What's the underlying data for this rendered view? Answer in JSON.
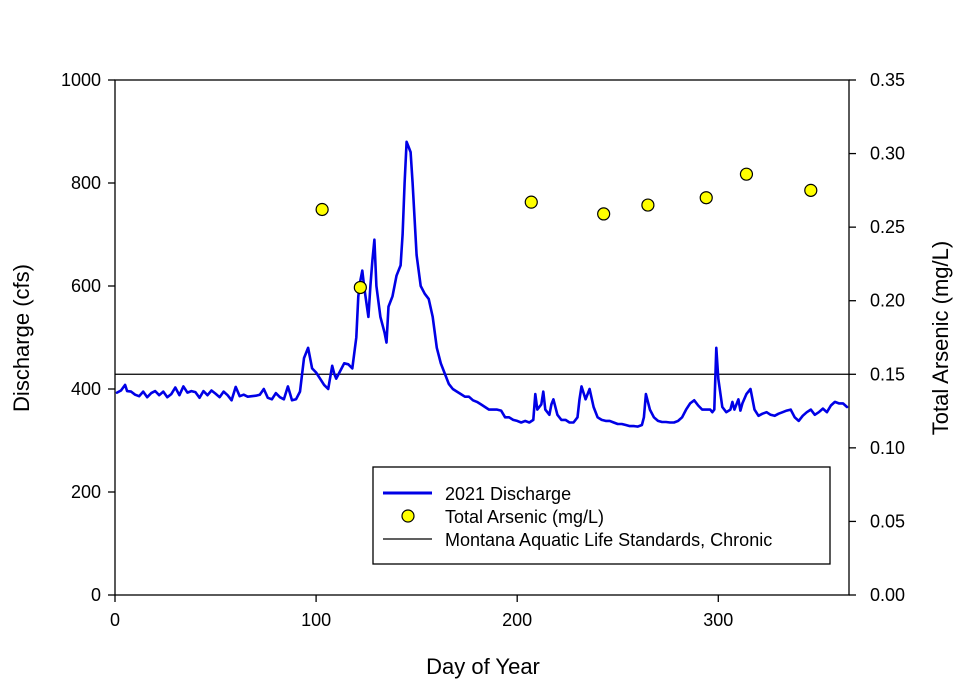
{
  "chart_data": {
    "type": "line",
    "xlabel": "Day of Year",
    "ylabel": "Discharge (cfs)",
    "y2label": "Total Arsenic (mg/L)",
    "xlim": [
      0,
      365
    ],
    "ylim": [
      0,
      1000
    ],
    "y2lim": [
      0,
      0.35
    ],
    "xticks": [
      0,
      100,
      200,
      300
    ],
    "yticks": [
      0,
      200,
      400,
      600,
      800,
      1000
    ],
    "y2ticks": [
      0.0,
      0.05,
      0.1,
      0.15,
      0.2,
      0.25,
      0.3,
      0.35
    ],
    "grid": false,
    "legend_position": "bottom-right",
    "colors": {
      "discharge": "#0000e6",
      "arsenic_fill": "#ffff00",
      "arsenic_edge": "#000000",
      "standard": "#000000"
    },
    "series": [
      {
        "name": "2021 Discharge",
        "axis": "left",
        "x": [
          1,
          3,
          5,
          6,
          8,
          10,
          12,
          14,
          16,
          18,
          20,
          22,
          24,
          26,
          28,
          30,
          32,
          34,
          36,
          38,
          40,
          42,
          44,
          46,
          48,
          50,
          52,
          54,
          56,
          58,
          60,
          62,
          64,
          66,
          68,
          70,
          72,
          74,
          76,
          78,
          80,
          82,
          84,
          86,
          88,
          90,
          92,
          94,
          96,
          98,
          100,
          102,
          104,
          106,
          108,
          109,
          110,
          112,
          114,
          116,
          118,
          120,
          121,
          122,
          123,
          124,
          126,
          127,
          128,
          129,
          130,
          132,
          134,
          135,
          136,
          138,
          140,
          142,
          143,
          144,
          145,
          146,
          147,
          148,
          150,
          152,
          154,
          156,
          158,
          160,
          162,
          164,
          166,
          168,
          170,
          172,
          174,
          176,
          178,
          180,
          182,
          184,
          186,
          188,
          190,
          192,
          194,
          196,
          198,
          200,
          202,
          204,
          206,
          208,
          209,
          210,
          212,
          213,
          214,
          216,
          217,
          218,
          220,
          222,
          224,
          226,
          228,
          230,
          231,
          232,
          234,
          235,
          236,
          238,
          240,
          242,
          244,
          246,
          248,
          250,
          252,
          254,
          256,
          258,
          260,
          262,
          263,
          264,
          266,
          268,
          270,
          272,
          274,
          276,
          278,
          280,
          282,
          284,
          286,
          288,
          290,
          292,
          294,
          296,
          297,
          298,
          299,
          300,
          302,
          304,
          306,
          307,
          308,
          310,
          311,
          312,
          314,
          316,
          318,
          320,
          322,
          324,
          326,
          328,
          330,
          332,
          334,
          336,
          338,
          340,
          342,
          344,
          346,
          348,
          350,
          352,
          354,
          356,
          358,
          360,
          362,
          364
        ],
        "values": [
          393,
          397,
          408,
          396,
          395,
          389,
          386,
          395,
          384,
          392,
          396,
          388,
          395,
          384,
          390,
          403,
          388,
          405,
          393,
          396,
          394,
          383,
          396,
          388,
          397,
          391,
          384,
          395,
          388,
          378,
          404,
          386,
          389,
          385,
          386,
          387,
          389,
          400,
          383,
          380,
          392,
          384,
          380,
          405,
          378,
          380,
          395,
          460,
          480,
          440,
          432,
          420,
          408,
          400,
          445,
          430,
          420,
          435,
          450,
          448,
          440,
          500,
          580,
          610,
          630,
          595,
          540,
          600,
          650,
          690,
          600,
          540,
          510,
          490,
          560,
          580,
          620,
          640,
          700,
          800,
          880,
          870,
          860,
          800,
          660,
          600,
          585,
          575,
          540,
          480,
          450,
          430,
          410,
          400,
          395,
          390,
          385,
          385,
          378,
          375,
          370,
          365,
          360,
          360,
          360,
          358,
          345,
          345,
          340,
          338,
          335,
          338,
          335,
          340,
          390,
          360,
          370,
          395,
          360,
          350,
          370,
          380,
          350,
          340,
          340,
          335,
          335,
          345,
          380,
          405,
          380,
          390,
          400,
          365,
          345,
          340,
          338,
          338,
          335,
          332,
          332,
          330,
          328,
          328,
          327,
          330,
          345,
          390,
          360,
          345,
          338,
          336,
          336,
          335,
          335,
          338,
          345,
          360,
          372,
          378,
          368,
          360,
          360,
          360,
          355,
          360,
          480,
          420,
          365,
          355,
          360,
          375,
          360,
          380,
          358,
          372,
          390,
          400,
          360,
          348,
          352,
          355,
          350,
          348,
          352,
          355,
          358,
          360,
          345,
          338,
          348,
          355,
          360,
          350,
          355,
          362,
          355,
          368,
          375,
          372,
          372,
          365
        ]
      },
      {
        "name": "Total Arsenic (mg/L)",
        "axis": "right",
        "x": [
          103,
          122,
          207,
          243,
          265,
          294,
          314,
          346
        ],
        "values": [
          0.262,
          0.209,
          0.267,
          0.259,
          0.265,
          0.27,
          0.286,
          0.275
        ]
      },
      {
        "name": "Montana Aquatic Life Standards, Chronic",
        "axis": "right",
        "x": [
          0,
          365
        ],
        "values": [
          0.15,
          0.15
        ]
      }
    ]
  }
}
